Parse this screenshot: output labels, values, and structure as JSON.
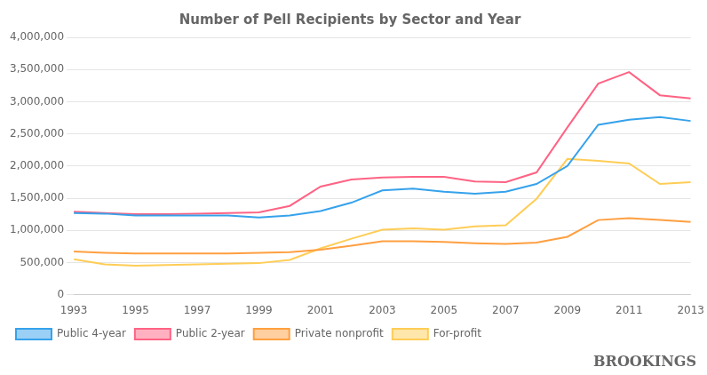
{
  "chart_data": {
    "type": "line",
    "title": "Number of Pell Recipients by Sector and Year",
    "x": [
      1993,
      1994,
      1995,
      1996,
      1997,
      1998,
      1999,
      2000,
      2001,
      2002,
      2003,
      2004,
      2005,
      2006,
      2007,
      2008,
      2009,
      2010,
      2011,
      2012,
      2013
    ],
    "series": [
      {
        "name": "Public 4-year",
        "values": [
          1270000,
          1260000,
          1230000,
          1230000,
          1230000,
          1230000,
          1200000,
          1230000,
          1300000,
          1430000,
          1620000,
          1650000,
          1600000,
          1570000,
          1600000,
          1720000,
          2000000,
          2640000,
          2720000,
          2760000,
          2700000
        ]
      },
      {
        "name": "Public 2-year",
        "values": [
          1290000,
          1270000,
          1250000,
          1250000,
          1260000,
          1270000,
          1280000,
          1380000,
          1680000,
          1790000,
          1820000,
          1830000,
          1830000,
          1760000,
          1750000,
          1900000,
          2600000,
          3280000,
          3460000,
          3100000,
          3050000
        ]
      },
      {
        "name": "Private nonprofit",
        "values": [
          670000,
          650000,
          640000,
          640000,
          640000,
          640000,
          650000,
          660000,
          700000,
          760000,
          830000,
          830000,
          820000,
          800000,
          790000,
          810000,
          900000,
          1160000,
          1190000,
          1160000,
          1130000
        ]
      },
      {
        "name": "For-profit",
        "values": [
          550000,
          470000,
          450000,
          460000,
          470000,
          480000,
          490000,
          540000,
          720000,
          870000,
          1010000,
          1030000,
          1010000,
          1060000,
          1080000,
          1490000,
          2110000,
          2080000,
          2040000,
          1720000,
          1750000
        ]
      }
    ],
    "xlim": [
      1993,
      2013
    ],
    "xticks": [
      1993,
      1995,
      1997,
      1999,
      2001,
      2003,
      2005,
      2007,
      2009,
      2011,
      2013
    ],
    "ylim": [
      0,
      4000000
    ],
    "yticks": [
      0,
      {
        "value": 500000,
        "label": "500,000"
      },
      {
        "value": 1000000,
        "label": "1,000,000"
      },
      {
        "value": 1500000,
        "label": "1,500,000"
      },
      {
        "value": 2000000,
        "label": "2,000,000"
      },
      {
        "value": 2500000,
        "label": "2,500,000"
      },
      {
        "value": 3000000,
        "label": "3,000,000"
      },
      {
        "value": 3500000,
        "label": "3,500,000"
      },
      {
        "value": 4000000,
        "label": "4,000,000"
      }
    ],
    "grid": true,
    "legend": "bottom",
    "annotations": [
      "BROOKINGS"
    ]
  }
}
